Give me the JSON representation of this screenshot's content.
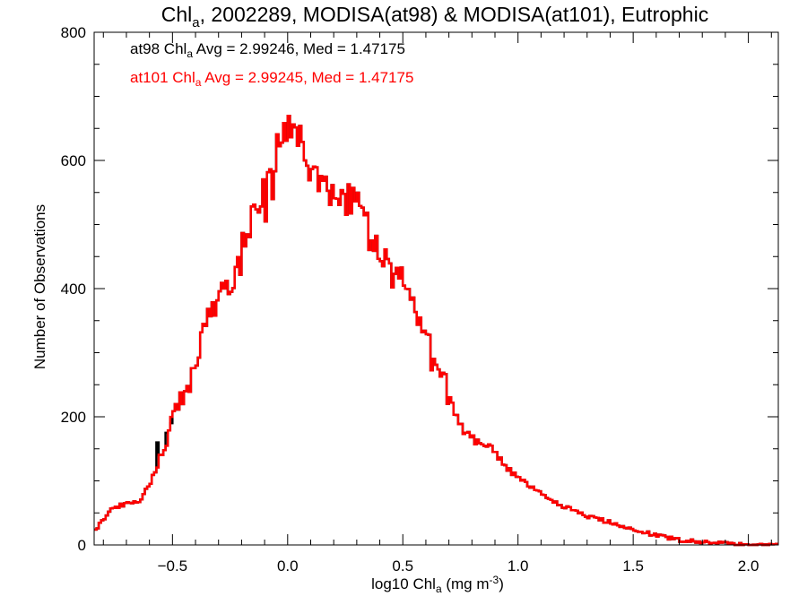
{
  "chart_data": {
    "type": "histogram",
    "title": {
      "main": "Chl",
      "sub": "a",
      "rest": ", 2002289, MODISA(at98) & MODISA(at101), Eutrophic"
    },
    "xlabel": {
      "pre": "log10 Chl",
      "sub": "a",
      "mid": " (mg m",
      "sup": "-3",
      "post": ")"
    },
    "ylabel": "Number of Observations",
    "xlim": [
      -0.84,
      2.13
    ],
    "ylim": [
      0,
      800
    ],
    "xticks": [
      -0.5,
      0.0,
      0.5,
      1.0,
      1.5,
      2.0
    ],
    "xtick_labels": [
      "−0.5",
      "0.0",
      "0.5",
      "1.0",
      "1.5",
      "2.0"
    ],
    "yticks": [
      0,
      200,
      400,
      600,
      800
    ],
    "ytick_labels": [
      "0",
      "200",
      "400",
      "600",
      "800"
    ],
    "grid": false,
    "annotations": [
      {
        "pre": "at98 Chl",
        "sub": "a",
        "post": " Avg = 2.99246, Med = 1.47175",
        "color": "#000000"
      },
      {
        "pre": "at101 Chl",
        "sub": "a",
        "post": " Avg = 2.99245, Med = 1.47175",
        "color": "#ff0000"
      }
    ],
    "series": [
      {
        "color": "#000000",
        "stroke_width": 2.5
      },
      {
        "color": "#ff0000",
        "stroke_width": 2.5
      }
    ],
    "x": [
      -0.84,
      -0.77,
      -0.7,
      -0.65,
      -0.6,
      -0.55,
      -0.5,
      -0.45,
      -0.4,
      -0.35,
      -0.3,
      -0.25,
      -0.2,
      -0.15,
      -0.1,
      -0.05,
      0.0,
      0.02,
      0.05,
      0.1,
      0.15,
      0.2,
      0.25,
      0.3,
      0.35,
      0.4,
      0.45,
      0.5,
      0.55,
      0.6,
      0.65,
      0.7,
      0.75,
      0.8,
      0.85,
      0.9,
      0.95,
      1.0,
      1.05,
      1.1,
      1.15,
      1.2,
      1.3,
      1.4,
      1.5,
      1.6,
      1.7,
      1.8,
      1.9,
      2.0,
      2.13
    ],
    "values": [
      20,
      55,
      65,
      65,
      95,
      140,
      200,
      240,
      275,
      360,
      400,
      395,
      470,
      510,
      560,
      610,
      650,
      650,
      630,
      590,
      560,
      545,
      530,
      560,
      500,
      460,
      440,
      420,
      370,
      330,
      280,
      245,
      185,
      165,
      160,
      145,
      120,
      105,
      90,
      80,
      70,
      60,
      45,
      35,
      25,
      15,
      8,
      5,
      2,
      0,
      0
    ],
    "deviations": [
      {
        "series": 0,
        "x": -0.53,
        "y": 175
      },
      {
        "series": 0,
        "x": -0.51,
        "y": 190
      },
      {
        "series": 0,
        "x": -0.57,
        "y": 160
      }
    ]
  }
}
